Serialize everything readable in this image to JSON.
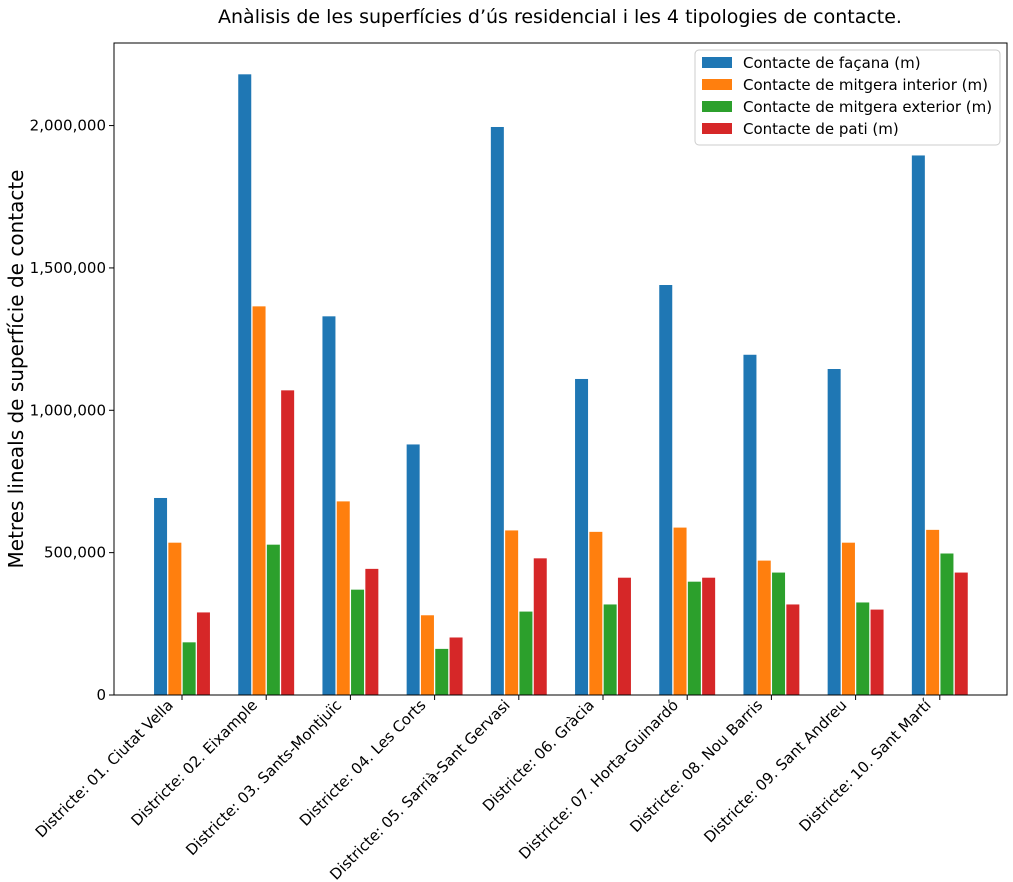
{
  "chart_data": {
    "type": "bar",
    "title": "Anàlisis de les superfícies d’ús residencial i les 4 tipologies de contacte.",
    "xlabel": "",
    "ylabel": "Metres lineals de superfície de contacte",
    "ylim": [
      0,
      2290000
    ],
    "yticks": [
      0,
      500000,
      1000000,
      1500000,
      2000000
    ],
    "ytick_labels": [
      "0",
      "500,000",
      "1,000,000",
      "1,500,000",
      "2,000,000"
    ],
    "grid": false,
    "legend_position": "top-right",
    "categories": [
      "Districte: 01. Ciutat Vella",
      "Districte: 02. Eixample",
      "Districte: 03. Sants-Montjuïc",
      "Districte: 04. Les Corts",
      "Districte: 05. Sarrià-Sant Gervasi",
      "Districte: 06. Gràcia",
      "Districte: 07. Horta-Guinardó",
      "Districte: 08. Nou Barris",
      "Districte: 09. Sant Andreu",
      "Districte: 10. Sant Martí"
    ],
    "series": [
      {
        "name": "Contacte de façana (m)",
        "color": "#1f77b4",
        "values": [
          692000,
          2180000,
          1330000,
          880000,
          1995000,
          1110000,
          1440000,
          1195000,
          1145000,
          1895000
        ]
      },
      {
        "name": "Contacte de mitgera interior (m)",
        "color": "#ff7f0e",
        "values": [
          535000,
          1365000,
          680000,
          280000,
          578000,
          573000,
          588000,
          472000,
          535000,
          580000
        ]
      },
      {
        "name": "Contacte de mitgera exterior (m)",
        "color": "#2ca02c",
        "values": [
          185000,
          528000,
          370000,
          162000,
          293000,
          318000,
          398000,
          430000,
          325000,
          497000
        ]
      },
      {
        "name": "Contacte de pati (m)",
        "color": "#d62728",
        "values": [
          290000,
          1070000,
          443000,
          202000,
          480000,
          412000,
          412000,
          318000,
          300000,
          430000
        ]
      }
    ]
  }
}
